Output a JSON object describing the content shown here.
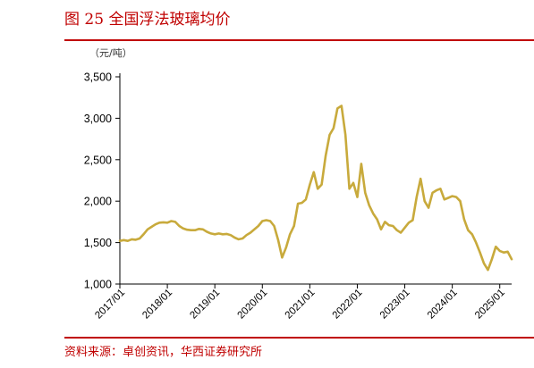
{
  "header": {
    "title": "图 25 全国浮法玻璃均价"
  },
  "footer": {
    "source": "资料来源：卓创资讯，华西证券研究所"
  },
  "colors": {
    "accent": "#c00000",
    "series": "#c8aa3c"
  },
  "chart_data": {
    "type": "line",
    "title": "图 25 全国浮法玻璃均价",
    "unit_label": "（元/吨）",
    "xlabel": "",
    "ylabel": "",
    "ylim": [
      1000,
      3500
    ],
    "xlim": [
      "2017-01",
      "2025-04"
    ],
    "yticks": [
      1000,
      1500,
      2000,
      2500,
      3000,
      3500
    ],
    "ytick_labels": [
      "1,000",
      "1,500",
      "2,000",
      "2,500",
      "3,000",
      "3,500"
    ],
    "xtick_labels": [
      "2017/01",
      "2018/01",
      "2019/01",
      "2020/01",
      "2021/01",
      "2022/01",
      "2023/01",
      "2024/01",
      "2025/01"
    ],
    "grid": false,
    "legend": "none",
    "series": [
      {
        "points": [
          [
            "2017-01",
            1520
          ],
          [
            "2017-02",
            1530
          ],
          [
            "2017-03",
            1520
          ],
          [
            "2017-04",
            1540
          ],
          [
            "2017-05",
            1535
          ],
          [
            "2017-06",
            1550
          ],
          [
            "2017-07",
            1600
          ],
          [
            "2017-08",
            1660
          ],
          [
            "2017-09",
            1690
          ],
          [
            "2017-10",
            1720
          ],
          [
            "2017-11",
            1740
          ],
          [
            "2017-12",
            1745
          ],
          [
            "2018-01",
            1740
          ],
          [
            "2018-02",
            1760
          ],
          [
            "2018-03",
            1750
          ],
          [
            "2018-04",
            1700
          ],
          [
            "2018-05",
            1670
          ],
          [
            "2018-06",
            1655
          ],
          [
            "2018-07",
            1650
          ],
          [
            "2018-08",
            1650
          ],
          [
            "2018-09",
            1665
          ],
          [
            "2018-10",
            1660
          ],
          [
            "2018-11",
            1630
          ],
          [
            "2018-12",
            1610
          ],
          [
            "2019-01",
            1600
          ],
          [
            "2019-02",
            1610
          ],
          [
            "2019-03",
            1600
          ],
          [
            "2019-04",
            1605
          ],
          [
            "2019-05",
            1590
          ],
          [
            "2019-06",
            1560
          ],
          [
            "2019-07",
            1540
          ],
          [
            "2019-08",
            1550
          ],
          [
            "2019-09",
            1590
          ],
          [
            "2019-10",
            1620
          ],
          [
            "2019-11",
            1660
          ],
          [
            "2019-12",
            1700
          ],
          [
            "2020-01",
            1760
          ],
          [
            "2020-02",
            1770
          ],
          [
            "2020-03",
            1760
          ],
          [
            "2020-04",
            1700
          ],
          [
            "2020-05",
            1530
          ],
          [
            "2020-06",
            1320
          ],
          [
            "2020-07",
            1440
          ],
          [
            "2020-08",
            1600
          ],
          [
            "2020-09",
            1700
          ],
          [
            "2020-10",
            1970
          ],
          [
            "2020-11",
            1980
          ],
          [
            "2020-12",
            2020
          ],
          [
            "2021-01",
            2200
          ],
          [
            "2021-02",
            2350
          ],
          [
            "2021-03",
            2150
          ],
          [
            "2021-04",
            2200
          ],
          [
            "2021-05",
            2550
          ],
          [
            "2021-06",
            2800
          ],
          [
            "2021-07",
            2880
          ],
          [
            "2021-08",
            3120
          ],
          [
            "2021-09",
            3150
          ],
          [
            "2021-10",
            2800
          ],
          [
            "2021-11",
            2150
          ],
          [
            "2021-12",
            2220
          ],
          [
            "2022-01",
            2050
          ],
          [
            "2022-02",
            2450
          ],
          [
            "2022-03",
            2100
          ],
          [
            "2022-04",
            1950
          ],
          [
            "2022-05",
            1850
          ],
          [
            "2022-06",
            1780
          ],
          [
            "2022-07",
            1660
          ],
          [
            "2022-08",
            1750
          ],
          [
            "2022-09",
            1710
          ],
          [
            "2022-10",
            1700
          ],
          [
            "2022-11",
            1650
          ],
          [
            "2022-12",
            1620
          ],
          [
            "2023-01",
            1680
          ],
          [
            "2023-02",
            1740
          ],
          [
            "2023-03",
            1770
          ],
          [
            "2023-04",
            2050
          ],
          [
            "2023-05",
            2270
          ],
          [
            "2023-06",
            2000
          ],
          [
            "2023-07",
            1920
          ],
          [
            "2023-08",
            2100
          ],
          [
            "2023-09",
            2130
          ],
          [
            "2023-10",
            2150
          ],
          [
            "2023-11",
            2020
          ],
          [
            "2023-12",
            2040
          ],
          [
            "2024-01",
            2060
          ],
          [
            "2024-02",
            2050
          ],
          [
            "2024-03",
            2000
          ],
          [
            "2024-04",
            1780
          ],
          [
            "2024-05",
            1650
          ],
          [
            "2024-06",
            1600
          ],
          [
            "2024-07",
            1500
          ],
          [
            "2024-08",
            1380
          ],
          [
            "2024-09",
            1250
          ],
          [
            "2024-10",
            1170
          ],
          [
            "2024-11",
            1300
          ],
          [
            "2024-12",
            1450
          ],
          [
            "2025-01",
            1400
          ],
          [
            "2025-02",
            1380
          ],
          [
            "2025-03",
            1390
          ],
          [
            "2025-04",
            1300
          ]
        ]
      }
    ]
  }
}
